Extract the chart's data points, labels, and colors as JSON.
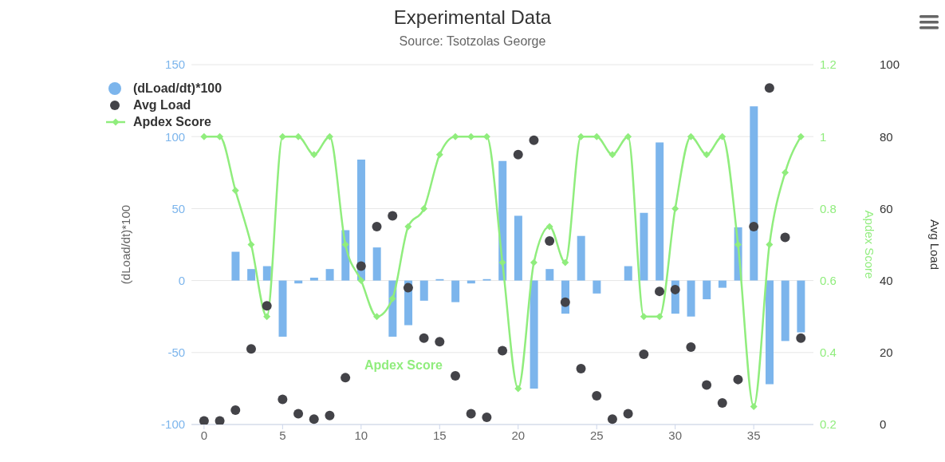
{
  "chart_data": {
    "type": "bar",
    "title": "Experimental Data",
    "subtitle": "Source: Tsotzolas George",
    "ylabel": "(dLoad/dt)*100",
    "y2label": "Apdex Score",
    "y3label": "Avg Load",
    "x": [
      0,
      1,
      2,
      3,
      4,
      5,
      6,
      7,
      8,
      9,
      10,
      11,
      12,
      13,
      14,
      15,
      16,
      17,
      18,
      19,
      20,
      21,
      22,
      23,
      24,
      25,
      26,
      27,
      28,
      29,
      30,
      31,
      32,
      33,
      34,
      35,
      36,
      37,
      38
    ],
    "series": [
      {
        "name": "(dLoad/dt)*100",
        "axis": "y",
        "color": "#7cb5ec",
        "values": [
          0,
          0,
          20,
          8,
          10,
          -39,
          -2,
          2,
          8,
          35,
          84,
          23,
          -39,
          -31,
          -14,
          1,
          -15,
          -2,
          1,
          83,
          45,
          -75,
          8,
          -23,
          31,
          -9,
          0,
          10,
          47,
          96,
          -23,
          -25,
          -13,
          -5,
          37,
          121,
          -72,
          -42,
          -36
        ]
      },
      {
        "name": "Avg Load",
        "type": "scatter",
        "axis": "y3",
        "color": "#434348",
        "marker": "circle",
        "values": [
          1,
          1,
          4,
          21,
          33,
          7,
          3,
          1.5,
          2.5,
          13,
          44,
          55,
          58,
          38,
          24,
          23,
          13.5,
          3,
          2,
          20.5,
          75,
          79,
          51,
          34,
          15.5,
          8,
          1.5,
          3,
          19.5,
          37,
          37.5,
          21.5,
          11,
          6,
          12.5,
          55,
          93.5,
          52,
          24
        ]
      },
      {
        "name": "Apdex Score",
        "type": "line",
        "axis": "y2",
        "color": "#90ed7d",
        "marker": "diamond",
        "line_style": "solid",
        "values": [
          1,
          1,
          0.85,
          0.7,
          0.5,
          1,
          1,
          0.95,
          1,
          0.7,
          0.6,
          0.5,
          0.55,
          0.75,
          0.8,
          0.95,
          1,
          1,
          1,
          0.65,
          0.3,
          0.65,
          0.75,
          0.65,
          1,
          1,
          0.95,
          1,
          0.5,
          0.5,
          0.8,
          1,
          0.95,
          1,
          0.7,
          0.25,
          0.7,
          0.9,
          1
        ]
      }
    ],
    "xlim": [
      -0.8,
      38.8
    ],
    "xticks": [
      0,
      5,
      10,
      15,
      20,
      25,
      30,
      35
    ],
    "ylim": [
      -100,
      150
    ],
    "yticks": [
      -100,
      -50,
      0,
      50,
      100,
      150
    ],
    "y2lim": [
      0.2,
      1.2
    ],
    "y2ticks": [
      0.2,
      0.4,
      0.6,
      0.8,
      1,
      1.2
    ],
    "y3lim": [
      0,
      100
    ],
    "y3ticks": [
      0,
      20,
      40,
      60,
      80,
      100
    ],
    "grid": "y",
    "legend": "top left",
    "annotations": [
      "Apdex Score"
    ]
  }
}
